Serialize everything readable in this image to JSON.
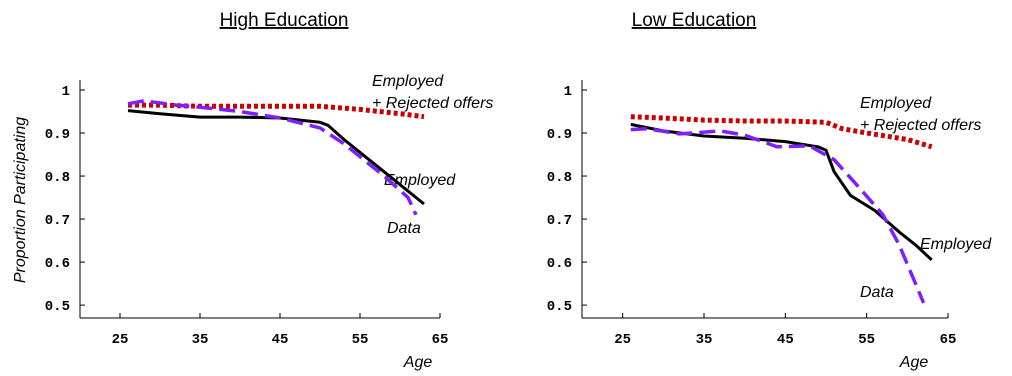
{
  "ylabel": "Proportion Participating",
  "chart_data": [
    {
      "type": "line",
      "title": "High Education",
      "xlabel": "Age",
      "ylabel": "Proportion Participating",
      "xlim": [
        20,
        65
      ],
      "ylim": [
        0.47,
        1.0
      ],
      "xticks": [
        25,
        35,
        45,
        55,
        65
      ],
      "yticks": [
        0.5,
        0.6,
        0.7,
        0.8,
        0.9,
        1
      ],
      "ytick_labels": [
        "0.5",
        "0.6",
        "0.7",
        "0.8",
        "0.9",
        "1"
      ],
      "series": [
        {
          "name": "Employed + Rejected offers",
          "label_lines": [
            "Employed",
            "+ Rejected offers"
          ],
          "color": "#cc0000",
          "style": "dotted",
          "x": [
            26,
            30,
            35,
            40,
            45,
            50,
            55,
            60,
            63
          ],
          "y": [
            0.965,
            0.965,
            0.962,
            0.962,
            0.962,
            0.962,
            0.955,
            0.945,
            0.938
          ]
        },
        {
          "name": "Employed",
          "color": "#000000",
          "style": "solid",
          "x": [
            26,
            30,
            35,
            40,
            45,
            50,
            51,
            53,
            55,
            58,
            61,
            63
          ],
          "y": [
            0.952,
            0.945,
            0.937,
            0.937,
            0.935,
            0.925,
            0.918,
            0.885,
            0.855,
            0.81,
            0.765,
            0.735
          ]
        },
        {
          "name": "Data",
          "color": "#7f1fff",
          "style": "dashed",
          "x": [
            26,
            28,
            32,
            35,
            40,
            45,
            50,
            53,
            55,
            58,
            61,
            62
          ],
          "y": [
            0.968,
            0.975,
            0.965,
            0.96,
            0.95,
            0.935,
            0.912,
            0.875,
            0.845,
            0.8,
            0.75,
            0.71
          ]
        }
      ]
    },
    {
      "type": "line",
      "title": "Low Education",
      "xlabel": "Age",
      "ylabel": "",
      "xlim": [
        20,
        65
      ],
      "ylim": [
        0.47,
        1.0
      ],
      "xticks": [
        25,
        35,
        45,
        55,
        65
      ],
      "yticks": [
        0.5,
        0.6,
        0.7,
        0.8,
        0.9,
        1
      ],
      "ytick_labels": [
        "0.5",
        "0.6",
        "0.7",
        "0.8",
        "0.9",
        "1"
      ],
      "series": [
        {
          "name": "Employed + Rejected offers",
          "label_lines": [
            "Employed",
            "+ Rejected offers"
          ],
          "color": "#cc0000",
          "style": "dotted",
          "x": [
            26,
            30,
            35,
            40,
            45,
            50,
            52,
            55,
            60,
            63
          ],
          "y": [
            0.938,
            0.935,
            0.93,
            0.928,
            0.928,
            0.925,
            0.91,
            0.9,
            0.885,
            0.868
          ]
        },
        {
          "name": "Employed",
          "color": "#000000",
          "style": "solid",
          "x": [
            26,
            30,
            35,
            40,
            45,
            49,
            50,
            51,
            53,
            56,
            59,
            61,
            63
          ],
          "y": [
            0.92,
            0.905,
            0.893,
            0.888,
            0.88,
            0.868,
            0.86,
            0.81,
            0.755,
            0.72,
            0.67,
            0.64,
            0.605
          ]
        },
        {
          "name": "Data",
          "color": "#7f1fff",
          "style": "dashed",
          "x": [
            26,
            28,
            32,
            37,
            40,
            44,
            48,
            51,
            54,
            57,
            59,
            61,
            62
          ],
          "y": [
            0.908,
            0.91,
            0.898,
            0.905,
            0.895,
            0.868,
            0.87,
            0.838,
            0.775,
            0.71,
            0.64,
            0.55,
            0.505
          ]
        }
      ]
    }
  ]
}
